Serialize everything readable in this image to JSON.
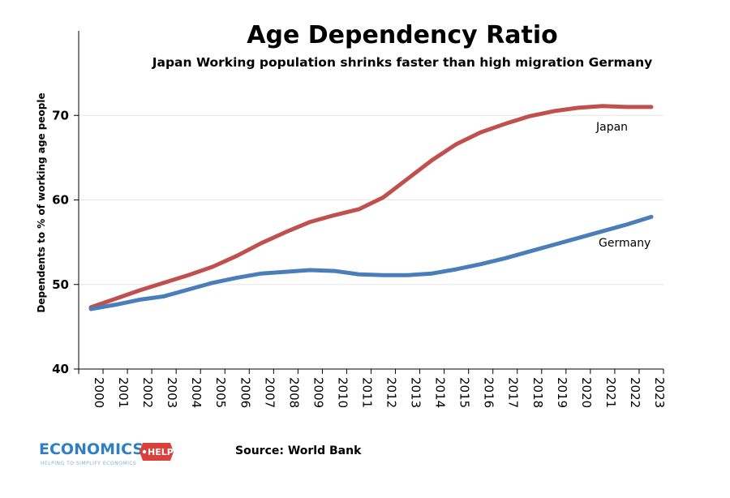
{
  "chart_data": {
    "type": "line",
    "title": "Age Dependency Ratio",
    "subtitle": "Japan Working population shrinks faster than high migration Germany",
    "xlabel": "",
    "ylabel": "Dependents to % of working age people",
    "ylim": [
      40,
      80
    ],
    "yticks": [
      40,
      50,
      60,
      70
    ],
    "grid": true,
    "x": [
      "2000",
      "2001",
      "2002",
      "2003",
      "2004",
      "2005",
      "2006",
      "2007",
      "2008",
      "2009",
      "2010",
      "2011",
      "2012",
      "2013",
      "2014",
      "2015",
      "2016",
      "2017",
      "2018",
      "2019",
      "2020",
      "2021",
      "2022",
      "2023"
    ],
    "series": [
      {
        "name": "Japan",
        "color": "#c0504d",
        "values": [
          47.3,
          48.3,
          49.3,
          50.2,
          51.1,
          52.1,
          53.4,
          54.9,
          56.2,
          57.4,
          58.2,
          58.9,
          60.3,
          62.5,
          64.7,
          66.6,
          68.0,
          69.0,
          69.9,
          70.5,
          70.9,
          71.1,
          71.0,
          71.0
        ]
      },
      {
        "name": "Germany",
        "color": "#4a7ebb",
        "values": [
          47.1,
          47.6,
          48.2,
          48.6,
          49.4,
          50.2,
          50.8,
          51.3,
          51.5,
          51.7,
          51.6,
          51.2,
          51.1,
          51.1,
          51.3,
          51.8,
          52.4,
          53.1,
          53.9,
          54.7,
          55.5,
          56.3,
          57.1,
          58.0
        ]
      }
    ]
  },
  "source": "Source: World Bank",
  "logo": {
    "main": "ECONOMICS",
    "badge": "HELP",
    "tagline": "HELPING TO SIMPLIFY ECONOMICS"
  }
}
